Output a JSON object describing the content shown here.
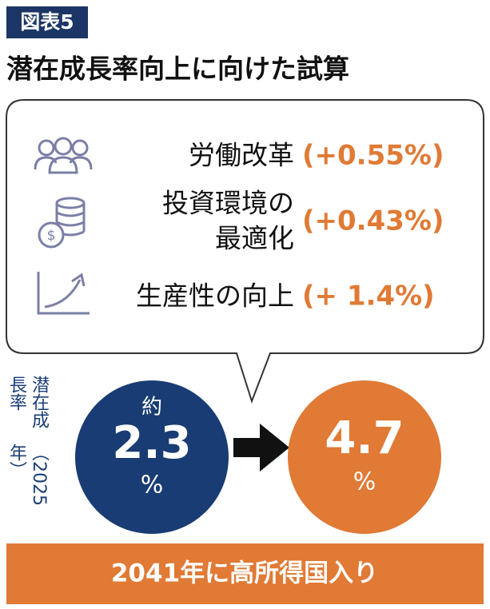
{
  "badge": "図表5",
  "title": "潜在成長率向上に向けた試算",
  "items": [
    {
      "label": [
        "労働改革"
      ],
      "value": "(+0.55%)"
    },
    {
      "label": [
        "投資環境の",
        "最適化"
      ],
      "value": "(+0.43%)"
    },
    {
      "label": [
        "生産性の向上"
      ],
      "value": "(+ 1.4%)"
    }
  ],
  "side_label": {
    "main": "潜在成長率",
    "note": "（2025年）"
  },
  "current": {
    "prefix": "約",
    "number": "2.3",
    "unit": "%"
  },
  "target": {
    "number": "4.7",
    "unit": "%"
  },
  "banner": "2041年に高所得国入り"
}
